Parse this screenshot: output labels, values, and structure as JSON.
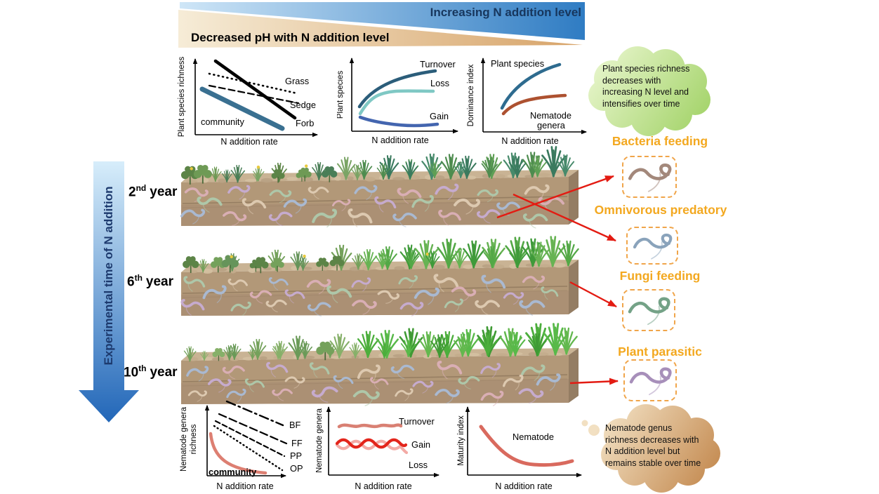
{
  "banner": {
    "increasing": "Increasing N addition level",
    "decreased_ph": "Decreased pH with N addition level"
  },
  "timeline": {
    "label": "Experimental time of N addition",
    "years": [
      {
        "value": "2",
        "ordinal": "nd",
        "unit": "year"
      },
      {
        "value": "6",
        "ordinal": "th",
        "unit": "year"
      },
      {
        "value": "10",
        "ordinal": "th",
        "unit": "year"
      }
    ]
  },
  "callouts": {
    "plant": "Plant species richness\ndecreases with\nincreasing N level and\nintensifies over time",
    "nematode": "Nematode genus\nrichness decreases with\nN addition level but\nremains stable over time"
  },
  "nematode_groups": [
    {
      "label": "Bacteria feeding",
      "color": "#a3887b"
    },
    {
      "label": "Omnivorous predatory",
      "color": "#8aa3bb"
    },
    {
      "label": "Fungi feeding",
      "color": "#74a287"
    },
    {
      "label": "Plant parasitic",
      "color": "#a78fba"
    }
  ],
  "accent_colors": {
    "orange_label": "#f3a81f",
    "red_arrow": "#e31b12",
    "timeline_blue": "#2166b8",
    "banner_blue": "#2f7cc3",
    "banner_tan": "#d7a368"
  },
  "chart_data": [
    {
      "id": "plant-species-richness",
      "type": "line",
      "xlabel": "N addition rate",
      "ylabel": "Plant species richness",
      "series": [
        {
          "name": "Grass",
          "style": "dotted",
          "color": "#000000",
          "trend": "decreasing with N addition"
        },
        {
          "name": "Sedge",
          "style": "dashed",
          "color": "#000000",
          "trend": "decreasing with N addition"
        },
        {
          "name": "Forb",
          "style": "solid-thick",
          "color": "#000000",
          "trend": "steeply decreasing with N addition"
        },
        {
          "name": "community",
          "style": "solid-thick",
          "color": "#3a7091",
          "trend": "decreasing with N addition"
        }
      ]
    },
    {
      "id": "plant-species-dynamics",
      "type": "line",
      "xlabel": "N addition rate",
      "ylabel": "Plant species",
      "series": [
        {
          "name": "Turnover",
          "color": "#2b5d7a",
          "trend": "increasing, saturating"
        },
        {
          "name": "Loss",
          "color": "#7fc8c4",
          "trend": "increasing then plateau"
        },
        {
          "name": "Gain",
          "color": "#4365af",
          "trend": "slightly decreasing then flat"
        }
      ]
    },
    {
      "id": "dominance-index",
      "type": "line",
      "xlabel": "N addition rate",
      "ylabel": "Dominance index",
      "series": [
        {
          "name": "Plant species",
          "color": "#2e6b8f",
          "trend": "increasing"
        },
        {
          "name": "Nematode genera",
          "lines": [
            "Nematode",
            "genera"
          ],
          "color": "#ad5130",
          "label_color": "#ad3b2a",
          "trend": "increasing then plateau"
        }
      ]
    },
    {
      "id": "nematode-genera-richness",
      "type": "line",
      "xlabel": "N addition rate",
      "ylabel": "Nematode genera richness",
      "ylabel_lines": [
        "Nematode genera",
        "richness"
      ],
      "series": [
        {
          "name": "BF",
          "style": "dash-dot",
          "color": "#000000",
          "trend": "decreasing"
        },
        {
          "name": "FF",
          "style": "long-dash",
          "color": "#000000",
          "trend": "decreasing"
        },
        {
          "name": "PP",
          "style": "dashed",
          "color": "#000000",
          "trend": "decreasing"
        },
        {
          "name": "OP",
          "style": "dotted",
          "color": "#000000",
          "trend": "decreasing"
        },
        {
          "name": "community",
          "style": "solid-thick",
          "color": "#dd7f72",
          "trend": "decreasing, concave up"
        }
      ]
    },
    {
      "id": "nematode-genera-dynamics",
      "type": "line",
      "xlabel": "N addition rate",
      "ylabel": "Nematode genera",
      "series": [
        {
          "name": "Turnover",
          "color": "#d98073",
          "label_color": "#ab2517",
          "trend": "stable, wavy"
        },
        {
          "name": "Gain",
          "color": "#e3251b",
          "label_color": "#e3251b",
          "trend": "stable, wavy"
        },
        {
          "name": "Loss",
          "color": "#f3aaa5",
          "label_color": "#f3aaa5",
          "trend": "stable, wavy"
        }
      ]
    },
    {
      "id": "maturity-index",
      "type": "line",
      "xlabel": "N addition rate",
      "ylabel": "Maturity index",
      "series": [
        {
          "name": "Nematode",
          "color": "#d96a5e",
          "trend": "decreasing then leveling off"
        }
      ]
    }
  ]
}
